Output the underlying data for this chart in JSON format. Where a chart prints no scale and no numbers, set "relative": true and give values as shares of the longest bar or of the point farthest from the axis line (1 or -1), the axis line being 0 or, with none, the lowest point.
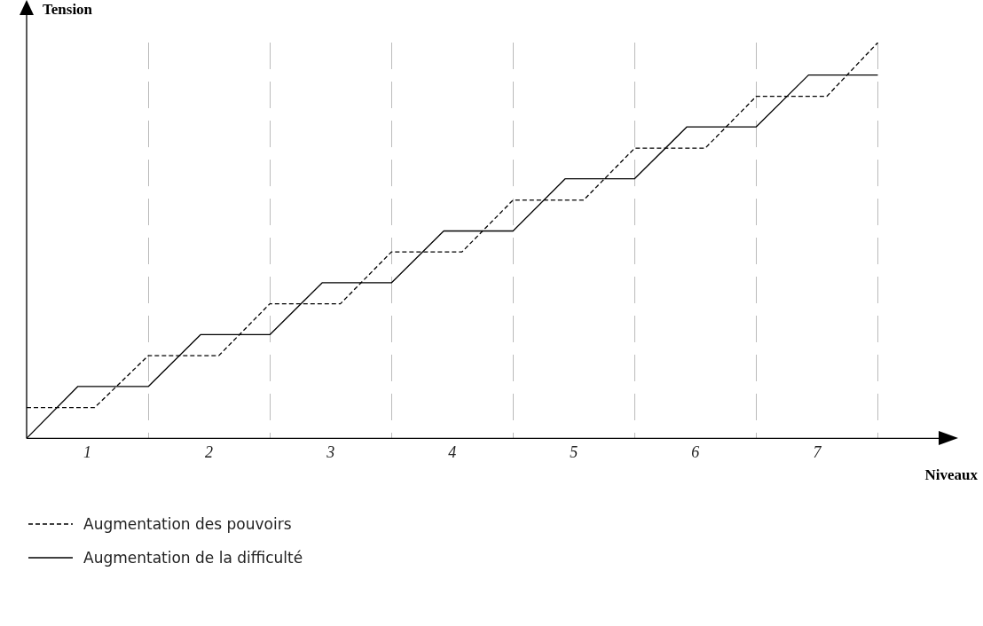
{
  "chart_data": {
    "type": "line",
    "relative": true,
    "xlabel": "Niveaux",
    "ylabel": "Tension",
    "xlim": [
      0,
      7.5
    ],
    "xticks": [
      {
        "value": 0.5,
        "label": "1"
      },
      {
        "value": 1,
        "label": null
      },
      {
        "value": 1.5,
        "label": "2"
      },
      {
        "value": 2,
        "label": null
      },
      {
        "value": 2.5,
        "label": "3"
      },
      {
        "value": 3,
        "label": null
      },
      {
        "value": 3.5,
        "label": "4"
      },
      {
        "value": 4,
        "label": null
      },
      {
        "value": 4.5,
        "label": "5"
      },
      {
        "value": 5,
        "label": null
      },
      {
        "value": 5.5,
        "label": "6"
      },
      {
        "value": 6,
        "label": null
      },
      {
        "value": 6.5,
        "label": "7"
      },
      {
        "value": 7,
        "label": null
      }
    ],
    "grid": "x",
    "legend": "bottom left",
    "marker": "none",
    "series": [
      {
        "name": "Augmentation des pouvoirs",
        "color": "#000000",
        "line_style": "dashed",
        "x": [
          0,
          0.56,
          1,
          1.58,
          2,
          2.58,
          3,
          3.58,
          4,
          4.58,
          5,
          5.58,
          6,
          6.58,
          7
        ],
        "values": [
          0.078,
          0.078,
          0.209,
          0.209,
          0.34,
          0.34,
          0.471,
          0.471,
          0.602,
          0.602,
          0.733,
          0.733,
          0.864,
          0.864,
          1
        ]
      },
      {
        "name": "Augmentation de la difficulté",
        "color": "#000000",
        "line_style": "solid",
        "x": [
          0,
          0.42,
          1,
          1.43,
          2,
          2.43,
          3,
          3.43,
          4,
          4.43,
          5,
          5.43,
          6,
          6.43,
          7
        ],
        "values": [
          0,
          0.131,
          0.131,
          0.262,
          0.262,
          0.393,
          0.393,
          0.524,
          0.524,
          0.656,
          0.656,
          0.787,
          0.787,
          0.918,
          0.918
        ]
      }
    ]
  }
}
